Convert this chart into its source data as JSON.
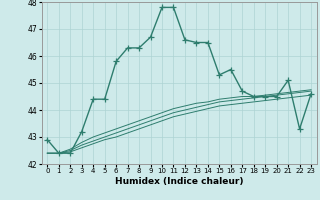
{
  "xlabel": "Humidex (Indice chaleur)",
  "x": [
    0,
    1,
    2,
    3,
    4,
    5,
    6,
    7,
    8,
    9,
    10,
    11,
    12,
    13,
    14,
    15,
    16,
    17,
    18,
    19,
    20,
    21,
    22,
    23
  ],
  "main_line": [
    42.9,
    42.4,
    42.4,
    43.2,
    44.4,
    44.4,
    45.8,
    46.3,
    46.3,
    46.7,
    47.8,
    47.8,
    46.6,
    46.5,
    46.5,
    45.3,
    45.5,
    44.7,
    44.5,
    44.5,
    44.5,
    45.1,
    43.3,
    44.6
  ],
  "line2": [
    42.4,
    42.4,
    42.55,
    42.8,
    43.0,
    43.15,
    43.3,
    43.45,
    43.6,
    43.75,
    43.9,
    44.05,
    44.15,
    44.25,
    44.3,
    44.4,
    44.45,
    44.5,
    44.5,
    44.55,
    44.6,
    44.65,
    44.7,
    44.75
  ],
  "line3": [
    42.4,
    42.4,
    42.5,
    42.7,
    42.85,
    43.0,
    43.15,
    43.3,
    43.45,
    43.6,
    43.75,
    43.9,
    44.0,
    44.1,
    44.2,
    44.3,
    44.35,
    44.4,
    44.45,
    44.5,
    44.55,
    44.6,
    44.65,
    44.7
  ],
  "line4": [
    42.4,
    42.4,
    42.45,
    42.6,
    42.75,
    42.9,
    43.0,
    43.15,
    43.3,
    43.45,
    43.6,
    43.75,
    43.85,
    43.95,
    44.05,
    44.15,
    44.2,
    44.25,
    44.3,
    44.35,
    44.4,
    44.45,
    44.5,
    44.55
  ],
  "line_color": "#2e7d6e",
  "bg_color": "#ceeaea",
  "grid_color": "#add4d4",
  "ylim_min": 42,
  "ylim_max": 48,
  "yticks": [
    42,
    43,
    44,
    45,
    46,
    47,
    48
  ],
  "marker": "+",
  "marker_size": 4,
  "linewidth": 1.0
}
